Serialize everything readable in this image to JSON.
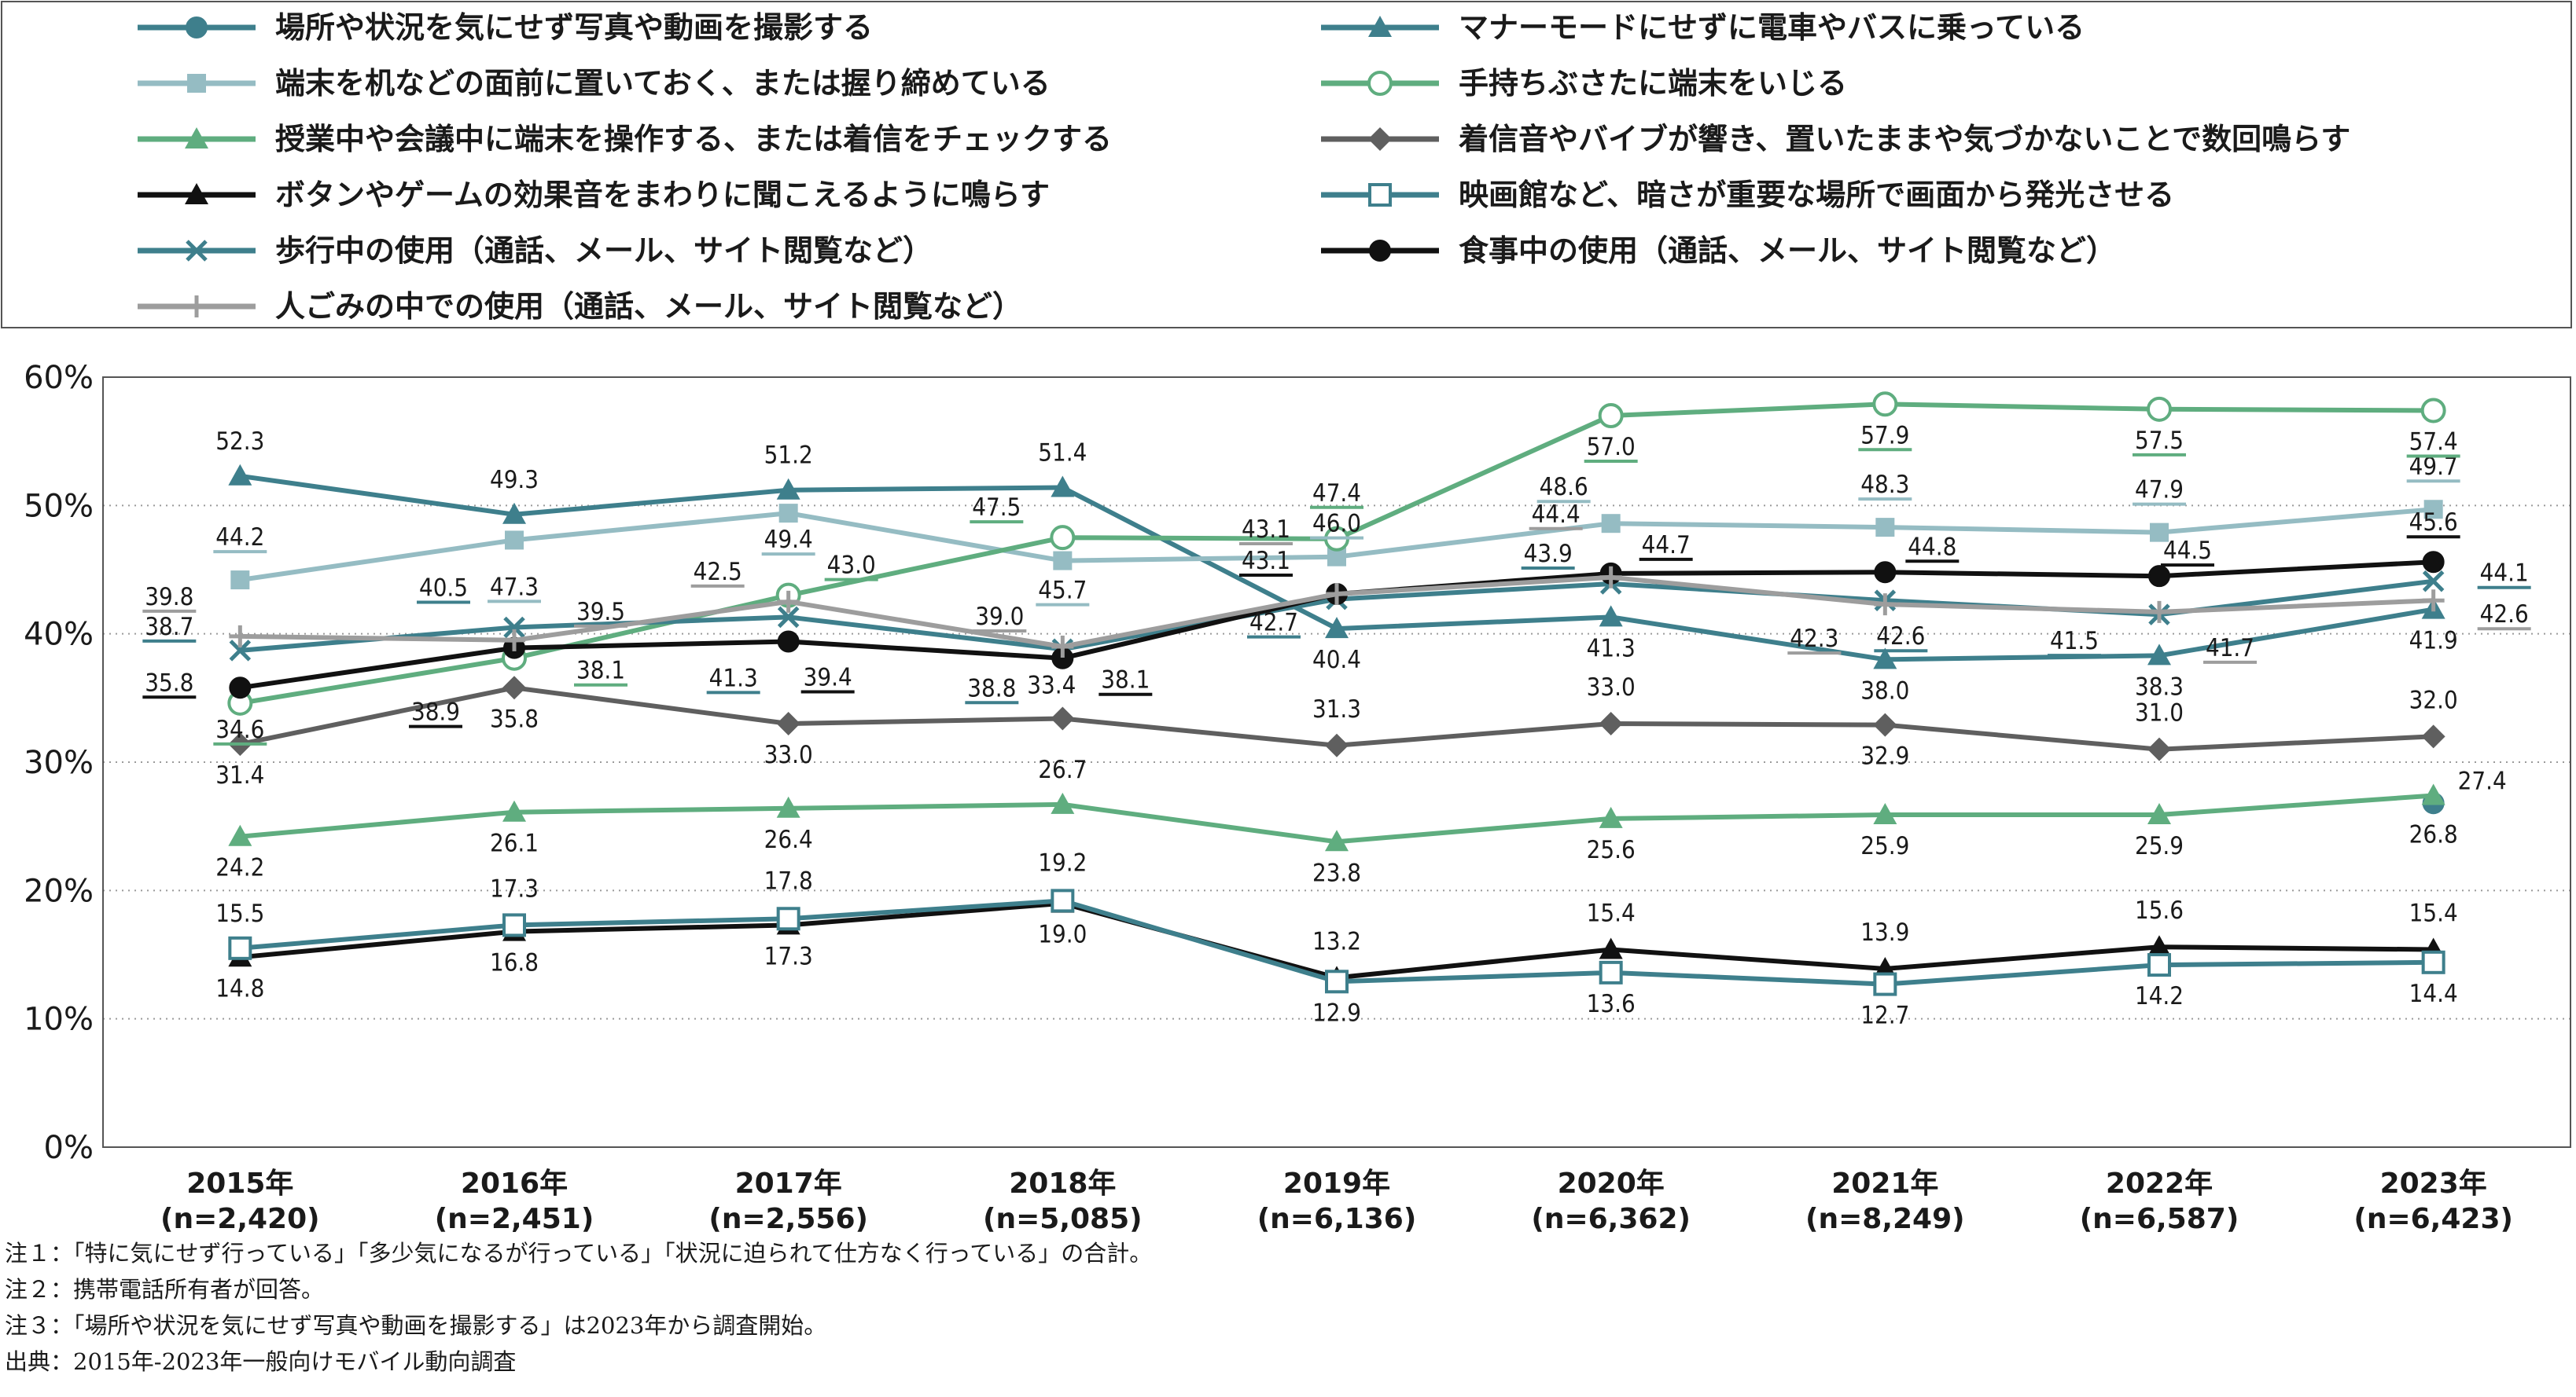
{
  "chart_data": {
    "type": "line",
    "title": "",
    "xlabel": "",
    "ylabel": "",
    "ylim": [
      0,
      60
    ],
    "yticks": [
      "0%",
      "10%",
      "20%",
      "30%",
      "40%",
      "50%",
      "60%"
    ],
    "grid": "horizontal dotted",
    "legend_position": "top",
    "categories": [
      {
        "year": "2015年",
        "n": "(n=2,420)"
      },
      {
        "year": "2016年",
        "n": "(n=2,451)"
      },
      {
        "year": "2017年",
        "n": "(n=2,556)"
      },
      {
        "year": "2018年",
        "n": "(n=5,085)"
      },
      {
        "year": "2019年",
        "n": "(n=6,136)"
      },
      {
        "year": "2020年",
        "n": "(n=6,362)"
      },
      {
        "year": "2021年",
        "n": "(n=8,249)"
      },
      {
        "year": "2022年",
        "n": "(n=6,587)"
      },
      {
        "year": "2023年",
        "n": "(n=6,423)"
      }
    ],
    "series": [
      {
        "name": "場所や状況を気にせず写真や動画を撮影する",
        "color": "#3e7f8c",
        "marker": "circle-filled",
        "values": [
          null,
          null,
          null,
          null,
          null,
          null,
          null,
          null,
          26.8
        ]
      },
      {
        "name": "マナーモードにせずに電車やバスに乗っている",
        "color": "#3e7f8c",
        "marker": "triangle-filled",
        "values": [
          52.3,
          49.3,
          51.2,
          51.4,
          40.4,
          41.3,
          38.0,
          38.3,
          41.9
        ]
      },
      {
        "name": "端末を机などの面前に置いておく、または握り締めている",
        "color": "#95bcc3",
        "marker": "square-filled",
        "values": [
          44.2,
          47.3,
          49.4,
          45.7,
          46.0,
          48.6,
          48.3,
          47.9,
          49.7
        ]
      },
      {
        "name": "手持ちぶさたに端末をいじる",
        "color": "#5fad7f",
        "marker": "circle-open",
        "values": [
          34.6,
          38.1,
          43.0,
          47.5,
          47.4,
          57.0,
          57.9,
          57.5,
          57.4
        ]
      },
      {
        "name": "授業中や会議中に端末を操作する、または着信をチェックする",
        "color": "#5fad7f",
        "marker": "triangle-filled",
        "values": [
          24.2,
          26.1,
          26.4,
          26.7,
          23.8,
          25.6,
          25.9,
          25.9,
          27.4
        ]
      },
      {
        "name": "着信音やバイブが響き、置いたままや気づかないことで数回鳴らす",
        "color": "#5f5f5f",
        "marker": "diamond-filled",
        "values": [
          31.4,
          35.8,
          33.0,
          33.4,
          31.3,
          33.0,
          32.9,
          31.0,
          32.0
        ]
      },
      {
        "name": "ボタンやゲームの効果音をまわりに聞こえるように鳴らす",
        "color": "#111111",
        "marker": "triangle-filled",
        "values": [
          14.8,
          16.8,
          17.3,
          19.0,
          13.2,
          15.4,
          13.9,
          15.6,
          15.4
        ]
      },
      {
        "name": "映画館など、暗さが重要な場所で画面から発光させる",
        "color": "#3e7f8c",
        "marker": "square-open",
        "values": [
          15.5,
          17.3,
          17.8,
          19.2,
          12.9,
          13.6,
          12.7,
          14.2,
          14.4
        ]
      },
      {
        "name": "歩行中の使用（通話、メール、サイト閲覧など）",
        "color": "#3e7f8c",
        "marker": "x",
        "values": [
          38.7,
          40.5,
          41.3,
          38.8,
          42.7,
          43.9,
          42.6,
          41.5,
          44.1
        ]
      },
      {
        "name": "食事中の使用（通話、メール、サイト閲覧など）",
        "color": "#111111",
        "marker": "circle-filled",
        "values": [
          35.8,
          38.9,
          39.4,
          38.1,
          43.1,
          44.7,
          44.8,
          44.5,
          45.6
        ]
      },
      {
        "name": "人ごみの中での使用（通話、メール、サイト閲覧など）",
        "color": "#9d9d9d",
        "marker": "plus",
        "values": [
          39.8,
          39.5,
          42.5,
          39.0,
          43.1,
          44.4,
          42.3,
          41.7,
          42.6
        ]
      }
    ]
  },
  "notes": [
    "注１：「特に気にせず行っている」「多少気になるが行っている」「状況に迫られて仕方なく行っている」の合計。",
    "注２：携帯電話所有者が回答。",
    "注３：「場所や状況を気にせず写真や動画を撮影する」は2023年から調査開始。",
    "出典：2015年-2023年一般向けモバイル動向調査"
  ]
}
